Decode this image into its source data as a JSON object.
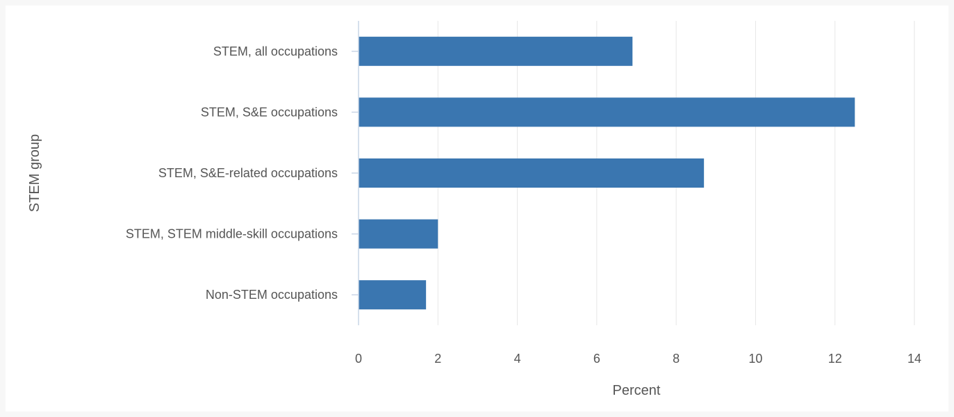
{
  "chart_data": {
    "type": "bar",
    "orientation": "horizontal",
    "categories": [
      "STEM, all occupations",
      "STEM, S&E occupations",
      "STEM, S&E-related occupations",
      "STEM, STEM middle-skill occupations",
      "Non-STEM occupations"
    ],
    "values": [
      6.9,
      12.5,
      8.7,
      2.0,
      1.7
    ],
    "xlabel": "Percent",
    "ylabel": "STEM group",
    "xlim": [
      0,
      14
    ],
    "xticks": [
      "0",
      "2",
      "4",
      "6",
      "8",
      "10",
      "12",
      "14"
    ],
    "grid": "vertical",
    "legend": "none",
    "colors": {
      "bar": "#3a76b0",
      "grid": "#e6e6e6",
      "axis": "#c9d5e6",
      "text": "#555555",
      "background": "#f7f7f7"
    }
  }
}
